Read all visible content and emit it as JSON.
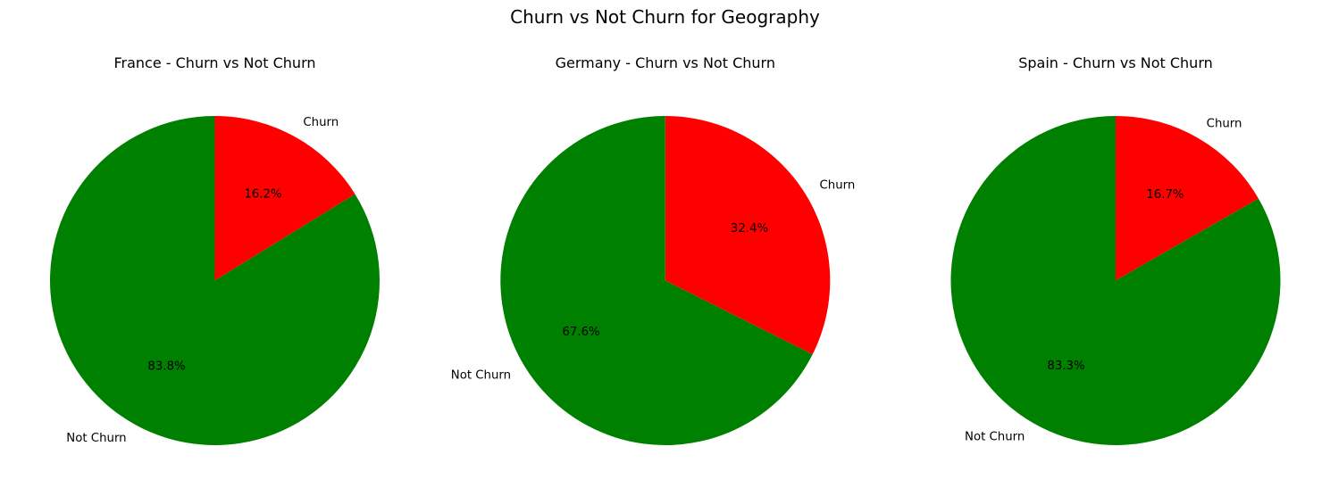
{
  "figure_title": "Churn vs Not Churn for Geography",
  "colors": {
    "churn": "#ff0000",
    "not_churn": "#008000"
  },
  "chart_data": [
    {
      "type": "pie",
      "title": "France - Churn vs Not Churn",
      "labels": [
        "Churn",
        "Not Churn"
      ],
      "values": [
        16.2,
        83.8
      ],
      "value_labels": [
        "16.2%",
        "83.8%"
      ],
      "colors": [
        "#ff0000",
        "#008000"
      ],
      "start_angle": 90,
      "direction": "clockwise"
    },
    {
      "type": "pie",
      "title": "Germany - Churn vs Not Churn",
      "labels": [
        "Churn",
        "Not Churn"
      ],
      "values": [
        32.4,
        67.6
      ],
      "value_labels": [
        "32.4%",
        "67.6%"
      ],
      "colors": [
        "#ff0000",
        "#008000"
      ],
      "start_angle": 90,
      "direction": "clockwise"
    },
    {
      "type": "pie",
      "title": "Spain - Churn vs Not Churn",
      "labels": [
        "Churn",
        "Not Churn"
      ],
      "values": [
        16.7,
        83.3
      ],
      "value_labels": [
        "16.7%",
        "83.3%"
      ],
      "colors": [
        "#ff0000",
        "#008000"
      ],
      "start_angle": 90,
      "direction": "clockwise"
    }
  ]
}
